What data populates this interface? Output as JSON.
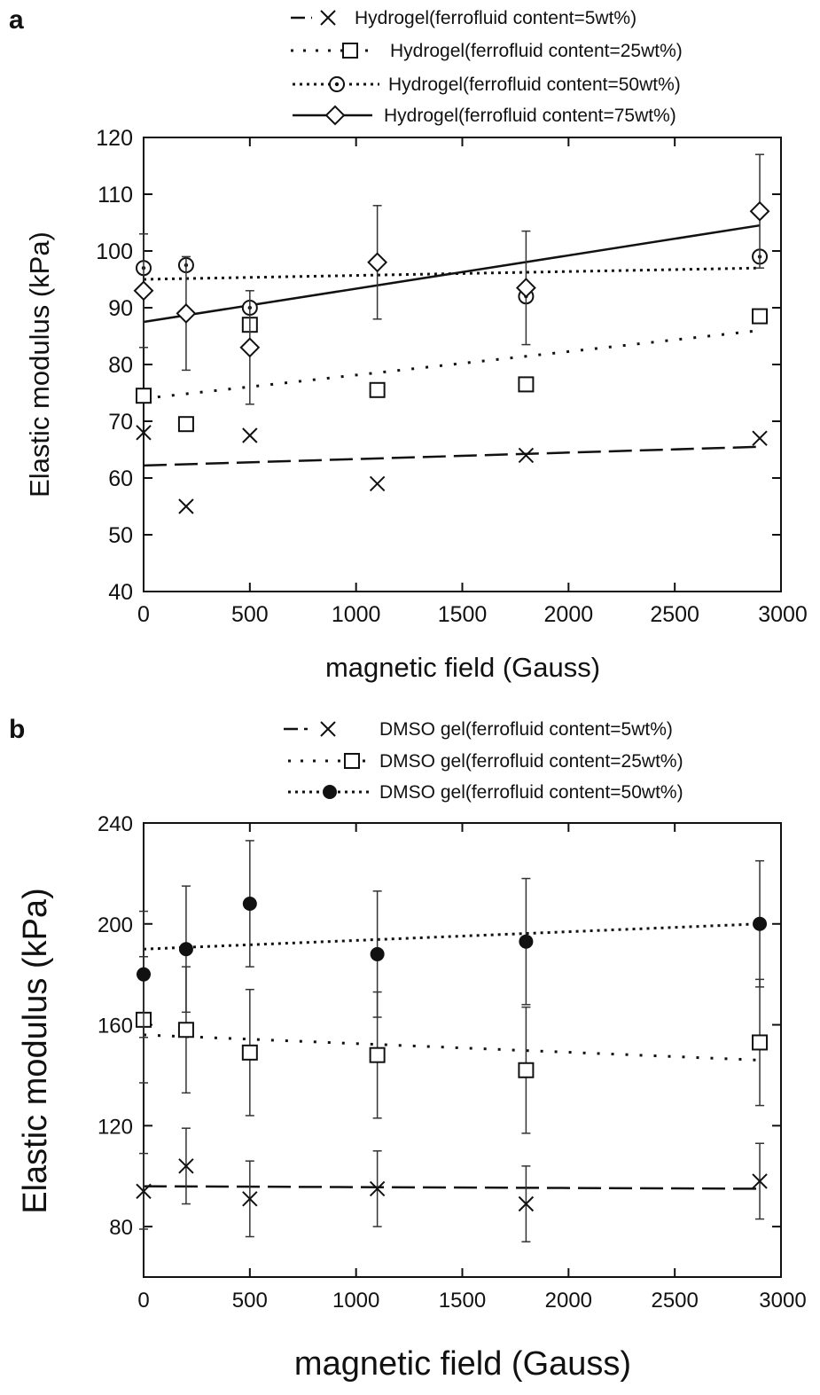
{
  "figure": {
    "panels": [
      "a",
      "b"
    ]
  },
  "chart_data": [
    {
      "panel": "a",
      "type": "scatter",
      "xlabel": "magnetic field (Gauss)",
      "ylabel": "Elastic modulus (kPa)",
      "xlim": [
        0,
        3000
      ],
      "ylim": [
        40,
        120
      ],
      "xticks": [
        0,
        500,
        1000,
        1500,
        2000,
        2500,
        3000
      ],
      "yticks": [
        40,
        50,
        60,
        70,
        80,
        90,
        100,
        110,
        120
      ],
      "legend_position": "top-right, above plot",
      "series": [
        {
          "name": "Hydrogel(ferrofluid content=5wt%)",
          "marker": "x",
          "line": "dashed",
          "x": [
            0,
            200,
            500,
            1100,
            1800,
            2900
          ],
          "y": [
            68,
            55,
            67.5,
            59,
            64,
            67
          ],
          "fit": [
            [
              0,
              62.2
            ],
            [
              2900,
              65.5
            ]
          ]
        },
        {
          "name": "Hydrogel(ferrofluid content=25wt%)",
          "marker": "square",
          "line": "dotted-sparse",
          "x": [
            0,
            200,
            500,
            1100,
            1800,
            2900
          ],
          "y": [
            74.5,
            69.5,
            87,
            75.5,
            76.5,
            88.5
          ],
          "fit": [
            [
              0,
              74
            ],
            [
              2900,
              86
            ]
          ]
        },
        {
          "name": "Hydrogel(ferrofluid content=50wt%)",
          "marker": "circle-dot",
          "line": "dotted",
          "x": [
            0,
            200,
            500,
            1800,
            2900
          ],
          "y": [
            97,
            97.5,
            90,
            92,
            99
          ],
          "fit": [
            [
              0,
              95
            ],
            [
              2900,
              97
            ]
          ]
        },
        {
          "name": "Hydrogel(ferrofluid content=75wt%)",
          "marker": "diamond",
          "line": "solid",
          "x": [
            0,
            200,
            500,
            1100,
            1800,
            2900
          ],
          "y": [
            93,
            89,
            83,
            98,
            93.5,
            107
          ],
          "err": [
            10,
            10,
            10,
            10,
            10,
            10
          ],
          "fit": [
            [
              0,
              87.5
            ],
            [
              2900,
              104.5
            ]
          ]
        }
      ]
    },
    {
      "panel": "b",
      "type": "scatter",
      "xlabel": "magnetic field (Gauss)",
      "ylabel": "Elastic modulus (kPa)",
      "xlim": [
        0,
        3000
      ],
      "ylim": [
        60,
        240
      ],
      "xticks": [
        0,
        500,
        1000,
        1500,
        2000,
        2500,
        3000
      ],
      "yticks": [
        80,
        120,
        160,
        200,
        240
      ],
      "legend_position": "top-right, above plot",
      "series": [
        {
          "name": "DMSO gel(ferrofluid content=5wt%)",
          "marker": "x",
          "line": "dashed",
          "x": [
            0,
            200,
            500,
            1100,
            1800,
            2900
          ],
          "y": [
            94,
            104,
            91,
            95,
            89,
            98
          ],
          "err": [
            15,
            15,
            15,
            15,
            15,
            15
          ],
          "fit": [
            [
              0,
              96
            ],
            [
              2900,
              95
            ]
          ]
        },
        {
          "name": "DMSO gel(ferrofluid content=25wt%)",
          "marker": "square",
          "line": "dotted-sparse",
          "x": [
            0,
            200,
            500,
            1100,
            1800,
            2900
          ],
          "y": [
            162,
            158,
            149,
            148,
            142,
            153
          ],
          "err": [
            25,
            25,
            25,
            25,
            25,
            25
          ],
          "fit": [
            [
              0,
              156
            ],
            [
              2900,
              146
            ]
          ]
        },
        {
          "name": "DMSO gel(ferrofluid content=50wt%)",
          "marker": "filled-circle",
          "line": "dotted",
          "x": [
            0,
            200,
            500,
            1100,
            1800,
            2900
          ],
          "y": [
            180,
            190,
            208,
            188,
            193,
            200
          ],
          "err": [
            25,
            25,
            25,
            25,
            25,
            25
          ],
          "fit": [
            [
              0,
              190
            ],
            [
              2900,
              200
            ]
          ]
        }
      ]
    }
  ]
}
